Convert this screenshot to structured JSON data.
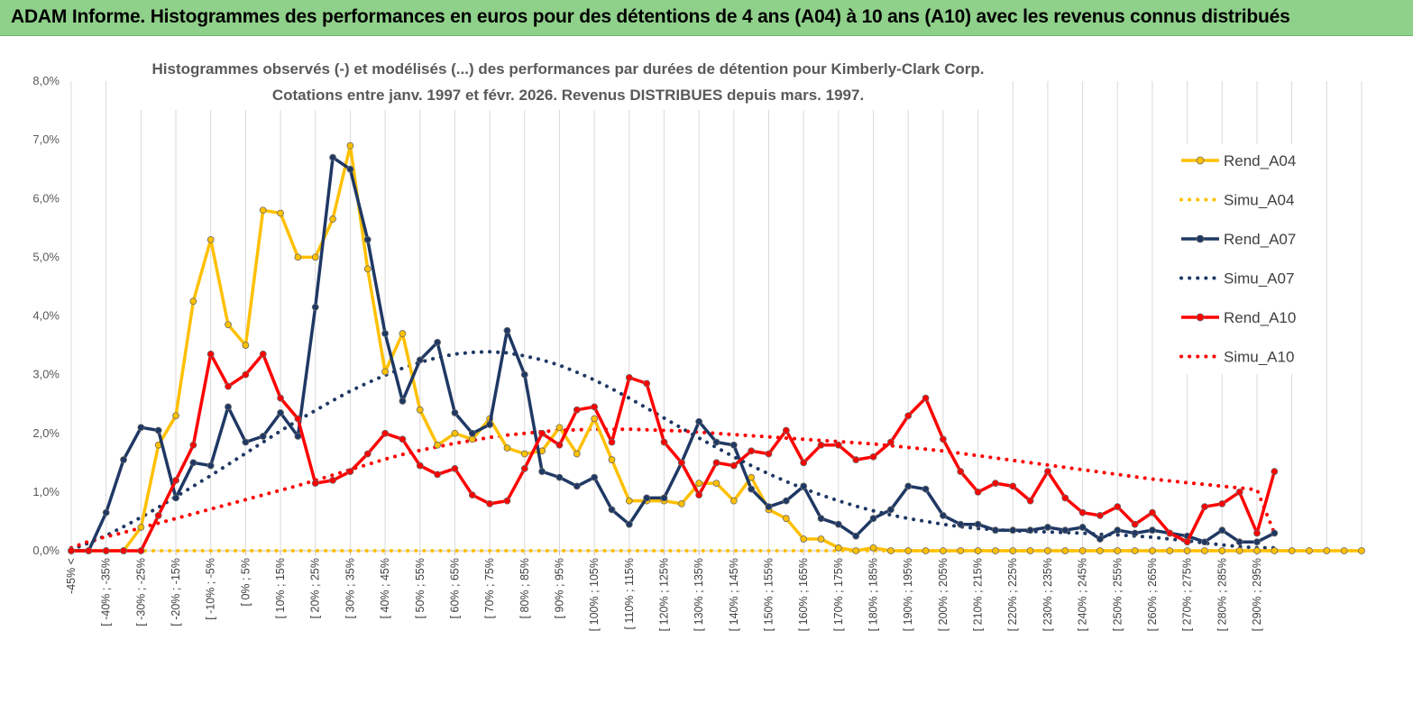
{
  "header": {
    "title": "ADAM Informe. Histogrammes des performances en euros pour des détentions de 4 ans (A04) à 10 ans (A10) avec les revenus connus distribués"
  },
  "colors": {
    "header_bg": "#8fd08a",
    "A04": "#ffc000",
    "A07": "#1f3864",
    "A10": "#ff0000"
  },
  "chart_data": {
    "type": "line",
    "title": "Histogrammes observés (-) et modélisés (...) des performances par durées de détention pour Kimberly-Clark Corp.",
    "subtitle": "Cotations entre janv. 1997 et févr. 2026. Revenus DISTRIBUES depuis mars. 1997.",
    "grid": "vertical",
    "legend_position": "right",
    "ylim": [
      0,
      8
    ],
    "yticks": [
      "0,0%",
      "1,0%",
      "2,0%",
      "3,0%",
      "4,0%",
      "5,0%",
      "6,0%",
      "7,0%",
      "8,0%"
    ],
    "xtick_labels": [
      "-45% <",
      "[ -40% ; -35%",
      "[ -30% ; -25%",
      "[ -20% ; -15%",
      "[ -10% ; -5%",
      "[ 0% ; 5%",
      "[ 10% ; 15%",
      "[ 20% ; 25%",
      "[ 30% ; 35%",
      "[ 40% ; 45%",
      "[ 50% ; 55%",
      "[ 60% ; 65%",
      "[ 70% ; 75%",
      "[ 80% ; 85%",
      "[ 90% ; 95%",
      "[ 100% ; 105%",
      "[ 110% ; 115%",
      "[ 120% ; 125%",
      "[ 130% ; 135%",
      "[ 140% ; 145%",
      "[ 150% ; 155%",
      "[ 160% ; 165%",
      "[ 170% ; 175%",
      "[ 180% ; 185%",
      "[ 190% ; 195%",
      "[ 200% ; 205%",
      "[ 210% ; 215%",
      "[ 220% ; 225%",
      "[ 230% ; 235%",
      "[ 240% ; 245%",
      "[ 250% ; 255%",
      "[ 260% ; 265%",
      "[ 270% ; 275%",
      "[ 280% ; 285%",
      "[ 290% ; 295%"
    ],
    "series": [
      {
        "name": "Rend_A04",
        "style": "solid",
        "color": "#ffc000",
        "values": [
          0,
          0,
          0,
          0,
          0.4,
          1.8,
          2.3,
          4.25,
          5.3,
          3.85,
          3.5,
          5.8,
          5.75,
          5,
          5,
          5.65,
          6.9,
          4.8,
          3.05,
          3.7,
          2.4,
          1.8,
          2.0,
          1.9,
          2.25,
          1.75,
          1.65,
          1.7,
          2.1,
          1.65,
          2.25,
          1.55,
          0.85,
          0.85,
          0.85,
          0.8,
          1.15,
          1.15,
          0.85,
          1.25,
          0.7,
          0.55,
          0.2,
          0.2,
          0.05,
          0,
          0.05,
          0,
          0,
          0,
          0,
          0,
          0,
          0,
          0,
          0,
          0,
          0,
          0,
          0,
          0,
          0,
          0,
          0,
          0,
          0,
          0,
          0,
          0,
          0,
          0,
          0,
          0,
          0,
          0
        ]
      },
      {
        "name": "Simu_A04",
        "style": "dotted",
        "color": "#ffc000",
        "values": [
          0,
          0,
          0,
          0,
          0,
          0,
          0,
          0,
          0,
          0,
          0,
          0,
          0,
          0,
          0,
          0,
          0,
          0,
          0,
          0,
          0,
          0,
          0,
          0,
          0,
          0,
          0,
          0,
          0,
          0,
          0,
          0,
          0,
          0,
          0,
          0,
          0,
          0,
          0,
          0,
          0,
          0,
          0,
          0,
          0,
          0,
          0,
          0,
          0,
          0,
          0,
          0,
          0,
          0,
          0,
          0,
          0,
          0,
          0,
          0,
          0,
          0,
          0,
          0,
          0,
          0,
          0,
          0,
          0,
          0,
          0,
          0,
          0,
          0,
          0
        ]
      },
      {
        "name": "Rend_A07",
        "style": "solid",
        "color": "#1f3864",
        "values": [
          0,
          0,
          0.65,
          1.55,
          2.1,
          2.05,
          0.9,
          1.5,
          1.45,
          2.45,
          1.85,
          1.95,
          2.35,
          1.95,
          4.15,
          6.7,
          6.5,
          5.3,
          3.7,
          2.55,
          3.25,
          3.55,
          2.35,
          2.0,
          2.15,
          3.75,
          3.0,
          1.35,
          1.25,
          1.1,
          1.25,
          0.7,
          0.45,
          0.9,
          0.9,
          1.5,
          2.2,
          1.85,
          1.8,
          1.05,
          0.75,
          0.85,
          1.1,
          0.55,
          0.45,
          0.25,
          0.55,
          0.7,
          1.1,
          1.05,
          0.6,
          0.45,
          0.45,
          0.35,
          0.35,
          0.35,
          0.4,
          0.35,
          0.4,
          0.2,
          0.35,
          0.3,
          0.35,
          0.3,
          0.25,
          0.15,
          0.35,
          0.15,
          0.15,
          0.3
        ]
      },
      {
        "name": "Simu_A07",
        "style": "dotted",
        "color": "#1f3864",
        "values": [
          0.02,
          0.13,
          0.26,
          0.41,
          0.57,
          0.74,
          0.92,
          1.1,
          1.28,
          1.47,
          1.66,
          1.85,
          2.04,
          2.22,
          2.39,
          2.56,
          2.72,
          2.86,
          2.99,
          3.11,
          3.21,
          3.29,
          3.35,
          3.38,
          3.39,
          3.37,
          3.32,
          3.25,
          3.16,
          3.04,
          2.91,
          2.76,
          2.6,
          2.43,
          2.26,
          2.09,
          1.92,
          1.76,
          1.6,
          1.45,
          1.31,
          1.18,
          1.06,
          0.95,
          0.85,
          0.76,
          0.68,
          0.61,
          0.55,
          0.5,
          0.45,
          0.41,
          0.38,
          0.36,
          0.34,
          0.33,
          0.32,
          0.31,
          0.3,
          0.28,
          0.27,
          0.25,
          0.23,
          0.2,
          0.17,
          0.13,
          0.1,
          0.07,
          0.05,
          0.05
        ]
      },
      {
        "name": "Rend_A10",
        "style": "solid",
        "color": "#ff0000",
        "values": [
          0,
          0,
          0,
          0,
          0,
          0.6,
          1.2,
          1.8,
          3.35,
          2.8,
          3.0,
          3.35,
          2.6,
          2.25,
          1.15,
          1.2,
          1.35,
          1.65,
          2.0,
          1.9,
          1.45,
          1.3,
          1.4,
          0.95,
          0.8,
          0.85,
          1.4,
          2.0,
          1.8,
          2.4,
          2.45,
          1.85,
          2.95,
          2.85,
          1.85,
          1.5,
          0.95,
          1.5,
          1.45,
          1.7,
          1.65,
          2.05,
          1.5,
          1.8,
          1.8,
          1.55,
          1.6,
          1.85,
          2.3,
          2.6,
          1.9,
          1.35,
          1.0,
          1.15,
          1.1,
          0.85,
          1.35,
          0.9,
          0.65,
          0.6,
          0.75,
          0.45,
          0.65,
          0.3,
          0.15,
          0.75,
          0.8,
          1.0,
          0.3,
          1.35
        ]
      },
      {
        "name": "Simu_A10",
        "style": "dotted",
        "color": "#ff0000",
        "values": [
          0.05,
          0.16,
          0.24,
          0.31,
          0.39,
          0.47,
          0.55,
          0.63,
          0.71,
          0.79,
          0.87,
          0.95,
          1.03,
          1.11,
          1.2,
          1.29,
          1.38,
          1.47,
          1.56,
          1.64,
          1.71,
          1.77,
          1.83,
          1.88,
          1.93,
          1.97,
          2.0,
          2.03,
          2.05,
          2.06,
          2.07,
          2.07,
          2.07,
          2.06,
          2.05,
          2.04,
          2.02,
          2.0,
          1.98,
          1.96,
          1.94,
          1.92,
          1.9,
          1.88,
          1.86,
          1.84,
          1.82,
          1.79,
          1.76,
          1.73,
          1.7,
          1.66,
          1.62,
          1.58,
          1.54,
          1.5,
          1.46,
          1.42,
          1.38,
          1.34,
          1.3,
          1.26,
          1.22,
          1.19,
          1.16,
          1.13,
          1.1,
          1.07,
          1.04,
          0.3
        ]
      }
    ]
  }
}
